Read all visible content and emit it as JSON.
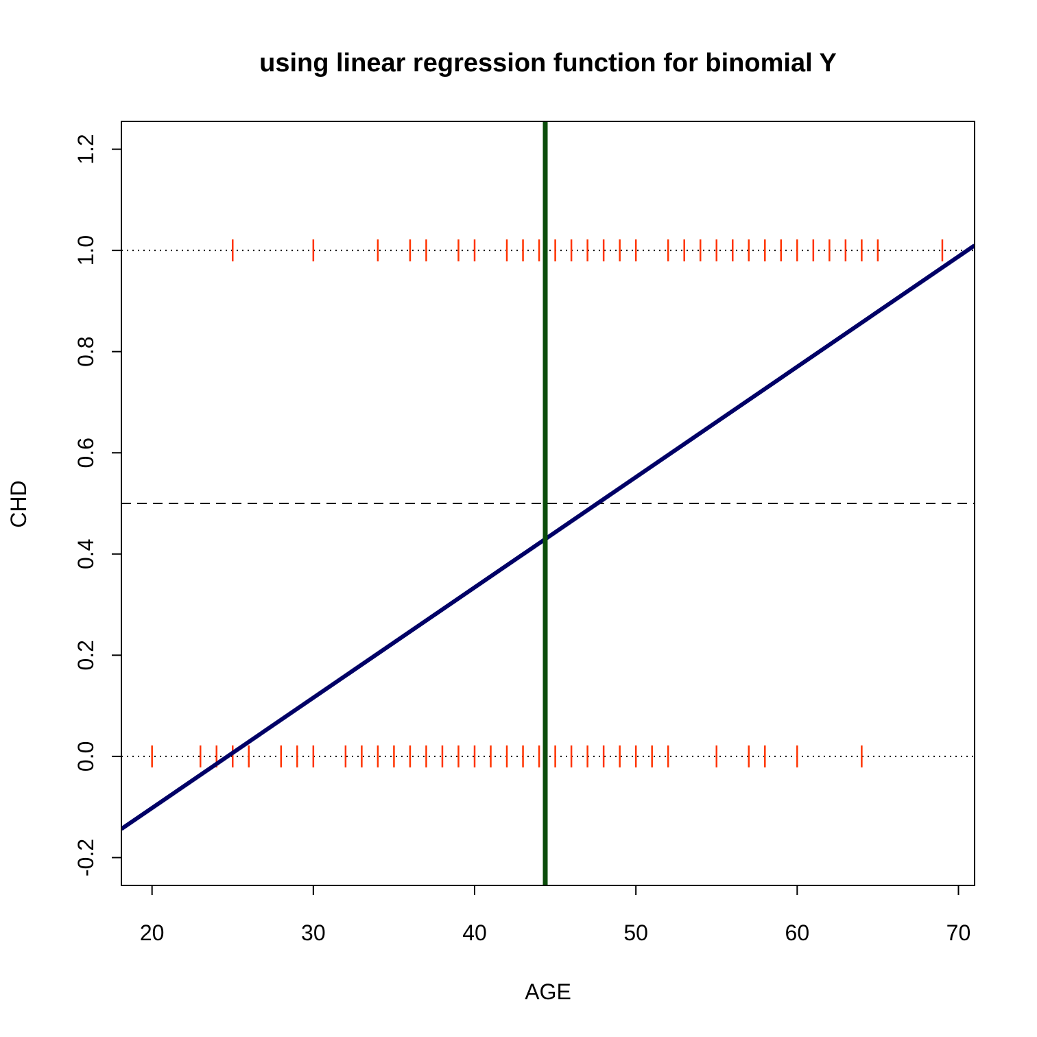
{
  "chart_data": {
    "type": "scatter",
    "title": "using linear regression function for binomial Y",
    "xlabel": "AGE",
    "ylabel": "CHD",
    "xlim": [
      18.1,
      71.0
    ],
    "ylim": [
      -0.255,
      1.255
    ],
    "x_ticks": [
      20,
      30,
      40,
      50,
      60,
      70
    ],
    "y_ticks": [
      -0.2,
      0.0,
      0.2,
      0.4,
      0.6,
      0.8,
      1.0,
      1.2
    ],
    "y_tick_labels": [
      "-0.2",
      "0.0",
      "0.2",
      "0.4",
      "0.6",
      "0.8",
      "1.0",
      "1.2"
    ],
    "grid": false,
    "series": [
      {
        "marker": "vertical-tick",
        "color": "#ff3300",
        "points_y1": [
          25,
          30,
          34,
          36,
          37,
          39,
          40,
          42,
          43,
          44,
          45,
          46,
          47,
          48,
          49,
          50,
          52,
          53,
          54,
          55,
          56,
          57,
          58,
          59,
          60,
          61,
          62,
          63,
          64,
          65,
          69
        ],
        "points_y0": [
          20,
          23,
          24,
          25,
          26,
          28,
          29,
          30,
          32,
          33,
          34,
          35,
          36,
          37,
          38,
          39,
          40,
          41,
          42,
          43,
          44,
          45,
          46,
          47,
          48,
          49,
          50,
          51,
          52,
          55,
          57,
          58,
          60,
          64
        ]
      }
    ],
    "regression_line": {
      "intercept": -0.538,
      "slope": 0.0218,
      "color": "#000066"
    },
    "reference_lines": {
      "horizontal_dotted": [
        0,
        1
      ],
      "horizontal_dashed": 0.5,
      "vertical_line_x": 44.38,
      "vertical_line_color": "#0b4d0b"
    }
  }
}
